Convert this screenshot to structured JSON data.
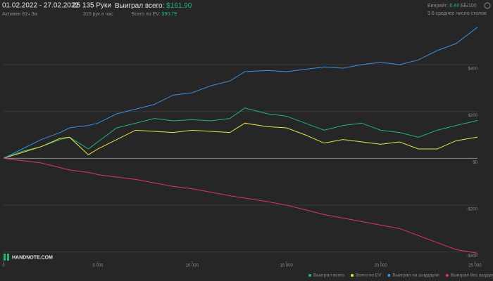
{
  "header": {
    "date_range": "01.02.2022 - 27.02.2022",
    "active": "Активен 81ч 3м",
    "hands": "25 135 Руки",
    "hands_per_hour": "310 рук в час",
    "won_label": "Выиграл всего:",
    "won_value": "$161.90",
    "ev_label": "Всего по EV:",
    "ev_value": "$90.79",
    "winrate_label": "Винрейт:",
    "winrate_value": "6.44",
    "winrate_unit": "ББ/100",
    "tables": "3.8 среднее число столов"
  },
  "logo": "HANDNOTE.COM",
  "chart_data": {
    "type": "line",
    "x": [
      0,
      1000,
      2000,
      3000,
      3500,
      4500,
      5000,
      6000,
      7000,
      8000,
      9000,
      10000,
      11000,
      12000,
      12800,
      14000,
      15000,
      16000,
      17000,
      18000,
      19000,
      20000,
      21000,
      22000,
      23000,
      24000,
      25135
    ],
    "xlim": [
      0,
      25135
    ],
    "ylim": [
      -440,
      580
    ],
    "xticks": [
      0,
      {
        "value": 5000,
        "label": "5 000"
      },
      {
        "value": 10000,
        "label": "10 000"
      },
      {
        "value": 15000,
        "label": "15 000"
      },
      {
        "value": 20000,
        "label": "20 000"
      },
      {
        "value": 25000,
        "label": "25 000"
      }
    ],
    "yticks": [
      {
        "value": -400,
        "label": "-$400"
      },
      {
        "value": -200,
        "label": "-$200"
      },
      {
        "value": 0,
        "label": "$0"
      },
      {
        "value": 200,
        "label": "$200"
      },
      {
        "value": 400,
        "label": "$400"
      }
    ],
    "grid": true,
    "series": [
      {
        "name": "Выиграл всего",
        "color": "#22b573",
        "values": [
          0,
          30,
          50,
          80,
          90,
          40,
          70,
          130,
          150,
          170,
          160,
          165,
          160,
          170,
          215,
          190,
          180,
          150,
          120,
          140,
          150,
          120,
          110,
          90,
          120,
          140,
          161.9
        ]
      },
      {
        "name": "Всего по EV",
        "color": "#e8e44a",
        "values": [
          0,
          25,
          50,
          85,
          90,
          15,
          40,
          80,
          120,
          115,
          110,
          120,
          115,
          110,
          150,
          135,
          130,
          100,
          65,
          80,
          70,
          60,
          70,
          40,
          40,
          75,
          90.79
        ]
      },
      {
        "name": "Выиграл на шоудауне",
        "color": "#3a8fe0",
        "values": [
          0,
          40,
          80,
          110,
          130,
          140,
          150,
          190,
          210,
          230,
          270,
          280,
          310,
          330,
          370,
          375,
          370,
          380,
          390,
          385,
          400,
          410,
          400,
          420,
          460,
          490,
          560
        ]
      },
      {
        "name": "Выиграл без шоудауна",
        "color": "#e0336b",
        "values": [
          0,
          -10,
          -20,
          -40,
          -50,
          -60,
          -70,
          -80,
          -90,
          -105,
          -120,
          -130,
          -145,
          -160,
          -170,
          -185,
          -200,
          -220,
          -240,
          -255,
          -270,
          -285,
          -300,
          -330,
          -360,
          -390,
          -405
        ]
      }
    ]
  }
}
